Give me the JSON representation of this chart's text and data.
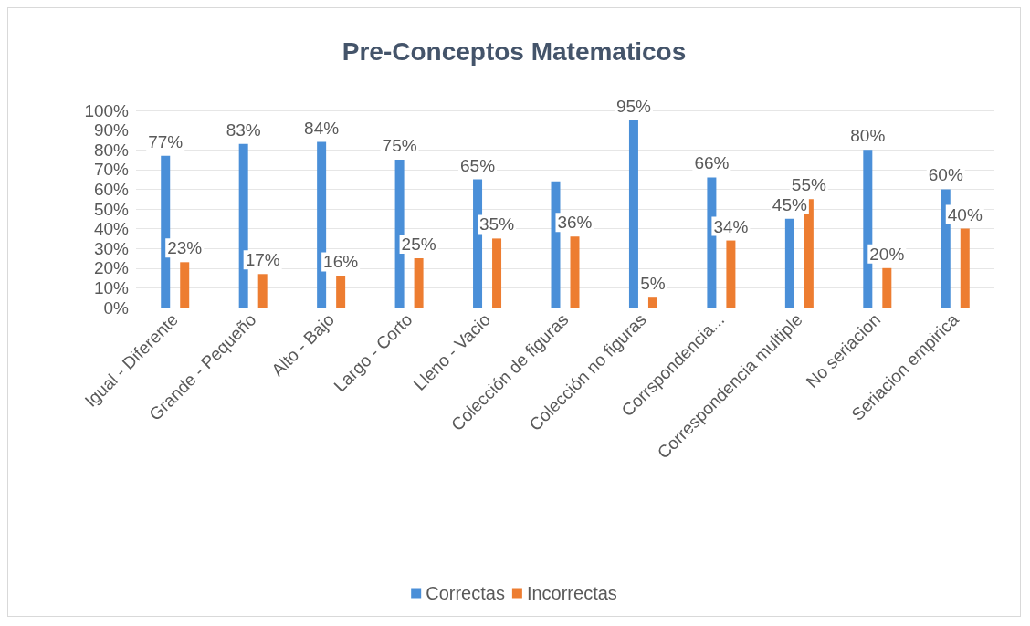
{
  "chart_data": {
    "type": "bar",
    "title": "Pre-Conceptos Matematicos",
    "categories": [
      "Igual - Diferente",
      "Grande - Pequeño",
      "Alto - Bajo",
      "Largo - Corto",
      "Lleno - Vacio",
      "Colección de figuras",
      "Colección no figuras",
      "Corrspondencia...",
      "Correspondencia multiple",
      "No seriacion",
      "Seriacion empirica"
    ],
    "series": [
      {
        "name": "Correctas",
        "color": "#4a8fd8",
        "values": [
          77,
          83,
          84,
          75,
          65,
          64,
          95,
          66,
          45,
          80,
          60
        ],
        "value_labels": [
          "77%",
          "83%",
          "84%",
          "75%",
          "65%",
          null,
          "95%",
          "66%",
          "45%",
          "80%",
          "60%"
        ]
      },
      {
        "name": "Incorrectas",
        "color": "#ed7d31",
        "values": [
          23,
          17,
          16,
          25,
          35,
          36,
          5,
          34,
          55,
          20,
          40
        ],
        "value_labels": [
          "23%",
          "17%",
          "16%",
          "25%",
          "35%",
          "36%",
          "5%",
          "34%",
          "55%",
          "20%",
          "40%"
        ]
      }
    ],
    "ylim": [
      0,
      100
    ],
    "yticks": [
      {
        "value": 0,
        "label": "0%"
      },
      {
        "value": 10,
        "label": "10%"
      },
      {
        "value": 20,
        "label": "20%"
      },
      {
        "value": 30,
        "label": "30%"
      },
      {
        "value": 40,
        "label": "40%"
      },
      {
        "value": 50,
        "label": "50%"
      },
      {
        "value": 60,
        "label": "60%"
      },
      {
        "value": 70,
        "label": "70%"
      },
      {
        "value": 80,
        "label": "80%"
      },
      {
        "value": 90,
        "label": "90%"
      },
      {
        "value": 100,
        "label": "100%"
      }
    ],
    "grid": "y",
    "legend": "bottom"
  }
}
